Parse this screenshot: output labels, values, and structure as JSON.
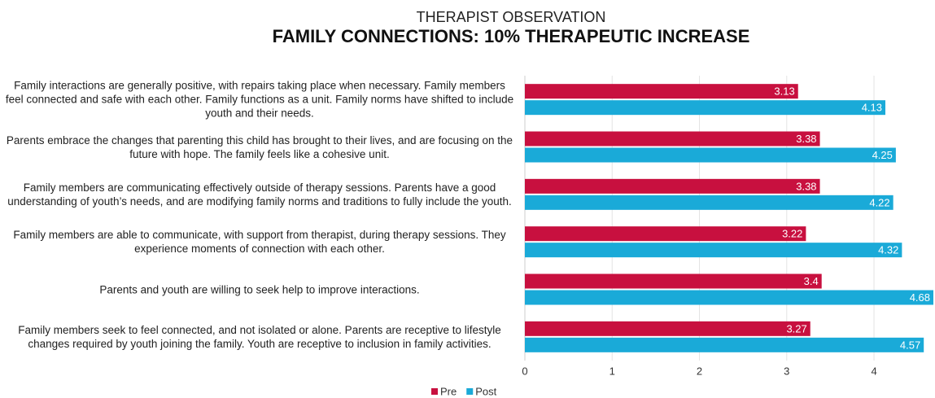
{
  "chart_data": {
    "type": "hbar",
    "subtitle": "THERAPIST OBSERVATION",
    "title": "FAMILY CONNECTIONS: 10% THERAPEUTIC INCREASE",
    "categories": [
      "Family interactions are generally positive, with repairs taking place when necessary. Family members feel connected and safe with each other. Family functions as a unit. Family norms have shifted to include youth and their needs.",
      "Parents embrace the changes that parenting this child has brought to their lives, and are focusing on the future with hope. The family feels like a cohesive unit.",
      "Family members are communicating effectively outside of therapy sessions. Parents have a good understanding of youth’s needs, and are modifying family norms and traditions to fully include the youth.",
      "Family members are able to communicate, with support from therapist, during therapy sessions. They experience moments of connection with each other.",
      "Parents and youth are willing to seek help to improve interactions.",
      "Family members seek to feel connected, and not isolated or alone. Parents are receptive to lifestyle changes required by youth joining the family. Youth are receptive to inclusion in family activities."
    ],
    "series": [
      {
        "name": "Pre",
        "color": "#c8103f",
        "values": [
          3.13,
          3.38,
          3.38,
          3.22,
          3.4,
          3.27
        ]
      },
      {
        "name": "Post",
        "color": "#1aaad8",
        "values": [
          4.13,
          4.25,
          4.22,
          4.32,
          4.68,
          4.57
        ]
      }
    ],
    "xlim": [
      0,
      4.68
    ],
    "xticks": [
      0,
      1,
      2,
      3,
      4
    ],
    "grid": true,
    "legend": "bottom"
  }
}
